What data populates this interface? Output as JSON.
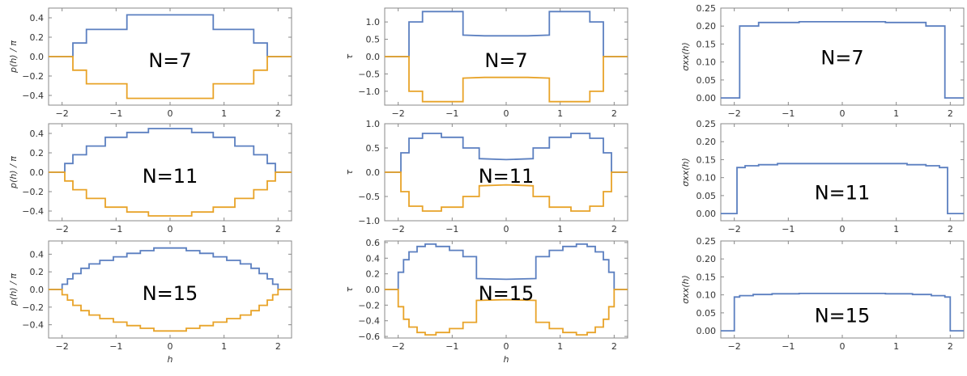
{
  "figure": {
    "colors": {
      "series_upper": "#5b7fc0",
      "series_lower": "#e8a328",
      "frame": "#888888"
    },
    "columns": [
      {
        "ylabel": "p(h) / π",
        "xlabel": "h"
      },
      {
        "ylabel": "τ",
        "xlabel": "h"
      },
      {
        "ylabel": "σxx(h)",
        "xlabel": ""
      }
    ]
  },
  "chart_data": [
    {
      "type": "line",
      "label": "N=7",
      "ylabel": "p(h) / π",
      "xlabel": "",
      "xlim": [
        -2.25,
        2.25
      ],
      "ylim": [
        -0.5,
        0.5
      ],
      "xticks": [
        "-2",
        "-1",
        "0",
        "1",
        "2"
      ],
      "yticks": [
        "-0.4",
        "-0.2",
        "0.0",
        "0.2",
        "0.4"
      ],
      "series": [
        {
          "x": [
            -2.25,
            -1.8,
            -1.8,
            -1.55,
            -1.55,
            -0.8,
            -0.8,
            0.8,
            0.8,
            1.55,
            1.55,
            1.8,
            1.8,
            2.25
          ],
          "y": [
            0,
            0,
            0.14,
            0.14,
            0.28,
            0.28,
            0.43,
            0.43,
            0.28,
            0.28,
            0.14,
            0.14,
            0,
            0
          ]
        },
        {
          "x": [
            -2.25,
            -1.8,
            -1.8,
            -1.55,
            -1.55,
            -0.8,
            -0.8,
            0.8,
            0.8,
            1.55,
            1.55,
            1.8,
            1.8,
            2.25
          ],
          "y": [
            0,
            0,
            -0.14,
            -0.14,
            -0.28,
            -0.28,
            -0.43,
            -0.43,
            -0.28,
            -0.28,
            -0.14,
            -0.14,
            0,
            0
          ]
        }
      ]
    },
    {
      "type": "line",
      "label": "N=7",
      "ylabel": "τ",
      "xlabel": "",
      "xlim": [
        -2.25,
        2.25
      ],
      "ylim": [
        -1.4,
        1.4
      ],
      "xticks": [
        "-2",
        "-1",
        "0",
        "1",
        "2"
      ],
      "yticks": [
        "-1.0",
        "-0.5",
        "0.0",
        "0.5",
        "1.0"
      ],
      "series": [
        {
          "x": [
            -2.25,
            -1.8,
            -1.8,
            -1.55,
            -1.55,
            -0.8,
            -0.8,
            -0.4,
            0,
            0.4,
            0.8,
            0.8,
            1.55,
            1.55,
            1.8,
            1.8,
            2.25
          ],
          "y": [
            0,
            0,
            1.0,
            1.0,
            1.3,
            1.3,
            0.62,
            0.6,
            0.6,
            0.6,
            0.62,
            1.3,
            1.3,
            1.0,
            1.0,
            0,
            0
          ]
        },
        {
          "x": [
            -2.25,
            -1.8,
            -1.8,
            -1.55,
            -1.55,
            -0.8,
            -0.8,
            -0.4,
            0,
            0.4,
            0.8,
            0.8,
            1.55,
            1.55,
            1.8,
            1.8,
            2.25
          ],
          "y": [
            0,
            0,
            -1.0,
            -1.0,
            -1.3,
            -1.3,
            -0.62,
            -0.6,
            -0.6,
            -0.6,
            -0.62,
            -1.3,
            -1.3,
            -1.0,
            -1.0,
            0,
            0
          ]
        }
      ]
    },
    {
      "type": "line",
      "label": "N=7",
      "ylabel": "σxx(h)",
      "xlabel": "",
      "xlim": [
        -2.25,
        2.25
      ],
      "ylim": [
        -0.02,
        0.25
      ],
      "xticks": [
        "-2",
        "-1",
        "0",
        "1",
        "2"
      ],
      "yticks": [
        "0.00",
        "0.05",
        "0.10",
        "0.15",
        "0.20",
        "0.25"
      ],
      "series": [
        {
          "x": [
            -2.25,
            -1.9,
            -1.9,
            -1.55,
            -1.55,
            -0.8,
            -0.8,
            0.8,
            0.8,
            1.55,
            1.55,
            1.9,
            1.9,
            2.25
          ],
          "y": [
            0,
            0,
            0.2,
            0.2,
            0.21,
            0.21,
            0.212,
            0.212,
            0.21,
            0.21,
            0.2,
            0.2,
            0,
            0
          ]
        }
      ]
    },
    {
      "type": "line",
      "label": "N=11",
      "ylabel": "p(h) / π",
      "xlabel": "",
      "xlim": [
        -2.25,
        2.25
      ],
      "ylim": [
        -0.5,
        0.5
      ],
      "xticks": [
        "-2",
        "-1",
        "0",
        "1",
        "2"
      ],
      "yticks": [
        "-0.4",
        "-0.2",
        "0.0",
        "0.2",
        "0.4"
      ],
      "series": [
        {
          "x": [
            -2.25,
            -1.95,
            -1.95,
            -1.8,
            -1.8,
            -1.55,
            -1.55,
            -1.2,
            -1.2,
            -0.8,
            -0.8,
            -0.4,
            -0.4,
            0.4,
            0.4,
            0.8,
            0.8,
            1.2,
            1.2,
            1.55,
            1.55,
            1.8,
            1.8,
            1.95,
            1.95,
            2.25
          ],
          "y": [
            0,
            0,
            0.09,
            0.09,
            0.18,
            0.18,
            0.27,
            0.27,
            0.36,
            0.36,
            0.41,
            0.41,
            0.45,
            0.45,
            0.41,
            0.41,
            0.36,
            0.36,
            0.27,
            0.27,
            0.18,
            0.18,
            0.09,
            0.09,
            0,
            0
          ]
        },
        {
          "x": [
            -2.25,
            -1.95,
            -1.95,
            -1.8,
            -1.8,
            -1.55,
            -1.55,
            -1.2,
            -1.2,
            -0.8,
            -0.8,
            -0.4,
            -0.4,
            0.4,
            0.4,
            0.8,
            0.8,
            1.2,
            1.2,
            1.55,
            1.55,
            1.8,
            1.8,
            1.95,
            1.95,
            2.25
          ],
          "y": [
            0,
            0,
            -0.09,
            -0.09,
            -0.18,
            -0.18,
            -0.27,
            -0.27,
            -0.36,
            -0.36,
            -0.41,
            -0.41,
            -0.45,
            -0.45,
            -0.41,
            -0.41,
            -0.36,
            -0.36,
            -0.27,
            -0.27,
            -0.18,
            -0.18,
            -0.09,
            -0.09,
            0,
            0
          ]
        }
      ]
    },
    {
      "type": "line",
      "label": "N=11",
      "ylabel": "τ",
      "xlabel": "",
      "xlim": [
        -2.25,
        2.25
      ],
      "ylim": [
        -1.0,
        1.0
      ],
      "xticks": [
        "-2",
        "-1",
        "0",
        "1",
        "2"
      ],
      "yticks": [
        "-1.0",
        "-0.5",
        "0.0",
        "0.5",
        "1.0"
      ],
      "series": [
        {
          "x": [
            -2.25,
            -1.95,
            -1.95,
            -1.8,
            -1.8,
            -1.55,
            -1.55,
            -1.2,
            -1.2,
            -0.8,
            -0.8,
            -0.5,
            -0.5,
            0,
            0.5,
            0.5,
            0.8,
            0.8,
            1.2,
            1.2,
            1.55,
            1.55,
            1.8,
            1.8,
            1.95,
            1.95,
            2.25
          ],
          "y": [
            0,
            0,
            0.4,
            0.4,
            0.7,
            0.7,
            0.8,
            0.8,
            0.72,
            0.72,
            0.5,
            0.5,
            0.28,
            0.26,
            0.28,
            0.5,
            0.5,
            0.72,
            0.72,
            0.8,
            0.8,
            0.7,
            0.7,
            0.4,
            0.4,
            0,
            0
          ]
        },
        {
          "x": [
            -2.25,
            -1.95,
            -1.95,
            -1.8,
            -1.8,
            -1.55,
            -1.55,
            -1.2,
            -1.2,
            -0.8,
            -0.8,
            -0.5,
            -0.5,
            0,
            0.5,
            0.5,
            0.8,
            0.8,
            1.2,
            1.2,
            1.55,
            1.55,
            1.8,
            1.8,
            1.95,
            1.95,
            2.25
          ],
          "y": [
            0,
            0,
            -0.4,
            -0.4,
            -0.7,
            -0.7,
            -0.8,
            -0.8,
            -0.72,
            -0.72,
            -0.5,
            -0.5,
            -0.28,
            -0.26,
            -0.28,
            -0.5,
            -0.5,
            -0.72,
            -0.72,
            -0.8,
            -0.8,
            -0.7,
            -0.7,
            -0.4,
            -0.4,
            0,
            0
          ]
        }
      ]
    },
    {
      "type": "line",
      "label": "N=11",
      "ylabel": "σxx(h)",
      "xlabel": "",
      "xlim": [
        -2.25,
        2.25
      ],
      "ylim": [
        -0.02,
        0.25
      ],
      "xticks": [
        "-2",
        "-1",
        "0",
        "1",
        "2"
      ],
      "yticks": [
        "0.00",
        "0.05",
        "0.10",
        "0.15",
        "0.20",
        "0.25"
      ],
      "series": [
        {
          "x": [
            -2.25,
            -1.95,
            -1.95,
            -1.8,
            -1.8,
            -1.55,
            -1.55,
            -1.2,
            -1.2,
            1.2,
            1.2,
            1.55,
            1.55,
            1.8,
            1.8,
            1.95,
            1.95,
            2.25
          ],
          "y": [
            0,
            0,
            0.128,
            0.128,
            0.133,
            0.133,
            0.136,
            0.136,
            0.139,
            0.139,
            0.136,
            0.136,
            0.133,
            0.133,
            0.128,
            0.128,
            0,
            0
          ]
        }
      ]
    },
    {
      "type": "line",
      "label": "N=15",
      "ylabel": "p(h) / π",
      "xlabel": "h",
      "xlim": [
        -2.25,
        2.25
      ],
      "ylim": [
        -0.55,
        0.55
      ],
      "xticks": [
        "-2",
        "-1",
        "0",
        "1",
        "2"
      ],
      "yticks": [
        "-0.4",
        "-0.2",
        "0.0",
        "0.2",
        "0.4"
      ],
      "series": [
        {
          "x": [
            -2.25,
            -2.0,
            -2.0,
            -1.9,
            -1.9,
            -1.8,
            -1.8,
            -1.65,
            -1.65,
            -1.5,
            -1.5,
            -1.3,
            -1.3,
            -1.05,
            -1.05,
            -0.8,
            -0.8,
            -0.55,
            -0.55,
            -0.3,
            -0.3,
            0.3,
            0.3,
            0.55,
            0.55,
            0.8,
            0.8,
            1.05,
            1.05,
            1.3,
            1.3,
            1.5,
            1.5,
            1.65,
            1.65,
            1.8,
            1.8,
            1.9,
            1.9,
            2.0,
            2.0,
            2.25
          ],
          "y": [
            0,
            0,
            0.06,
            0.06,
            0.12,
            0.12,
            0.18,
            0.18,
            0.24,
            0.24,
            0.29,
            0.29,
            0.33,
            0.33,
            0.37,
            0.37,
            0.41,
            0.41,
            0.44,
            0.44,
            0.47,
            0.47,
            0.44,
            0.44,
            0.41,
            0.41,
            0.37,
            0.37,
            0.33,
            0.33,
            0.29,
            0.29,
            0.24,
            0.24,
            0.18,
            0.18,
            0.12,
            0.12,
            0.06,
            0.06,
            0,
            0
          ]
        },
        {
          "x": [
            -2.25,
            -2.0,
            -2.0,
            -1.9,
            -1.9,
            -1.8,
            -1.8,
            -1.65,
            -1.65,
            -1.5,
            -1.5,
            -1.3,
            -1.3,
            -1.05,
            -1.05,
            -0.8,
            -0.8,
            -0.55,
            -0.55,
            -0.3,
            -0.3,
            0.3,
            0.3,
            0.55,
            0.55,
            0.8,
            0.8,
            1.05,
            1.05,
            1.3,
            1.3,
            1.5,
            1.5,
            1.65,
            1.65,
            1.8,
            1.8,
            1.9,
            1.9,
            2.0,
            2.0,
            2.25
          ],
          "y": [
            0,
            0,
            -0.06,
            -0.06,
            -0.12,
            -0.12,
            -0.18,
            -0.18,
            -0.24,
            -0.24,
            -0.29,
            -0.29,
            -0.33,
            -0.33,
            -0.37,
            -0.37,
            -0.41,
            -0.41,
            -0.44,
            -0.44,
            -0.47,
            -0.47,
            -0.44,
            -0.44,
            -0.41,
            -0.41,
            -0.37,
            -0.37,
            -0.33,
            -0.33,
            -0.29,
            -0.29,
            -0.24,
            -0.24,
            -0.18,
            -0.18,
            -0.12,
            -0.12,
            -0.06,
            -0.06,
            0,
            0
          ]
        }
      ]
    },
    {
      "type": "line",
      "label": "N=15",
      "ylabel": "τ",
      "xlabel": "h",
      "xlim": [
        -2.25,
        2.25
      ],
      "ylim": [
        -0.62,
        0.62
      ],
      "xticks": [
        "-2",
        "-1",
        "0",
        "1",
        "2"
      ],
      "yticks": [
        "-0.6",
        "-0.4",
        "-0.2",
        "0.0",
        "0.2",
        "0.4",
        "0.6"
      ],
      "series": [
        {
          "x": [
            -2.25,
            -2.0,
            -2.0,
            -1.9,
            -1.9,
            -1.8,
            -1.8,
            -1.65,
            -1.65,
            -1.5,
            -1.5,
            -1.3,
            -1.3,
            -1.05,
            -1.05,
            -0.8,
            -0.8,
            -0.55,
            -0.55,
            0,
            0.55,
            0.55,
            0.8,
            0.8,
            1.05,
            1.05,
            1.3,
            1.3,
            1.5,
            1.5,
            1.65,
            1.65,
            1.8,
            1.8,
            1.9,
            1.9,
            2.0,
            2.0,
            2.25
          ],
          "y": [
            0,
            0,
            0.22,
            0.22,
            0.38,
            0.38,
            0.48,
            0.48,
            0.55,
            0.55,
            0.58,
            0.58,
            0.55,
            0.55,
            0.5,
            0.5,
            0.42,
            0.42,
            0.14,
            0.13,
            0.14,
            0.42,
            0.42,
            0.5,
            0.5,
            0.55,
            0.55,
            0.58,
            0.58,
            0.55,
            0.55,
            0.48,
            0.48,
            0.38,
            0.38,
            0.22,
            0.22,
            0,
            0
          ]
        },
        {
          "x": [
            -2.25,
            -2.0,
            -2.0,
            -1.9,
            -1.9,
            -1.8,
            -1.8,
            -1.65,
            -1.65,
            -1.5,
            -1.5,
            -1.3,
            -1.3,
            -1.05,
            -1.05,
            -0.8,
            -0.8,
            -0.55,
            -0.55,
            0,
            0.55,
            0.55,
            0.8,
            0.8,
            1.05,
            1.05,
            1.3,
            1.3,
            1.5,
            1.5,
            1.65,
            1.65,
            1.8,
            1.8,
            1.9,
            1.9,
            2.0,
            2.0,
            2.25
          ],
          "y": [
            0,
            0,
            -0.22,
            -0.22,
            -0.38,
            -0.38,
            -0.48,
            -0.48,
            -0.55,
            -0.55,
            -0.58,
            -0.58,
            -0.55,
            -0.55,
            -0.5,
            -0.5,
            -0.42,
            -0.42,
            -0.14,
            -0.13,
            -0.14,
            -0.42,
            -0.42,
            -0.5,
            -0.5,
            -0.55,
            -0.55,
            -0.58,
            -0.58,
            -0.55,
            -0.55,
            -0.48,
            -0.48,
            -0.38,
            -0.38,
            -0.22,
            -0.22,
            0,
            0
          ]
        }
      ]
    },
    {
      "type": "line",
      "label": "N=15",
      "ylabel": "σxx(h)",
      "xlabel": "",
      "xlim": [
        -2.25,
        2.25
      ],
      "ylim": [
        -0.02,
        0.25
      ],
      "xticks": [
        "-2",
        "-1",
        "0",
        "1",
        "2"
      ],
      "yticks": [
        "0.00",
        "0.05",
        "0.10",
        "0.15",
        "0.20",
        "0.25"
      ],
      "series": [
        {
          "x": [
            -2.25,
            -2.0,
            -2.0,
            -1.9,
            -1.9,
            -1.65,
            -1.65,
            -1.3,
            -1.3,
            -0.8,
            -0.8,
            0.8,
            0.8,
            1.3,
            1.3,
            1.65,
            1.65,
            1.9,
            1.9,
            2.0,
            2.0,
            2.25
          ],
          "y": [
            0,
            0,
            0.094,
            0.094,
            0.098,
            0.098,
            0.101,
            0.101,
            0.103,
            0.103,
            0.104,
            0.104,
            0.103,
            0.103,
            0.101,
            0.101,
            0.098,
            0.098,
            0.094,
            0.094,
            0,
            0
          ]
        }
      ]
    }
  ]
}
